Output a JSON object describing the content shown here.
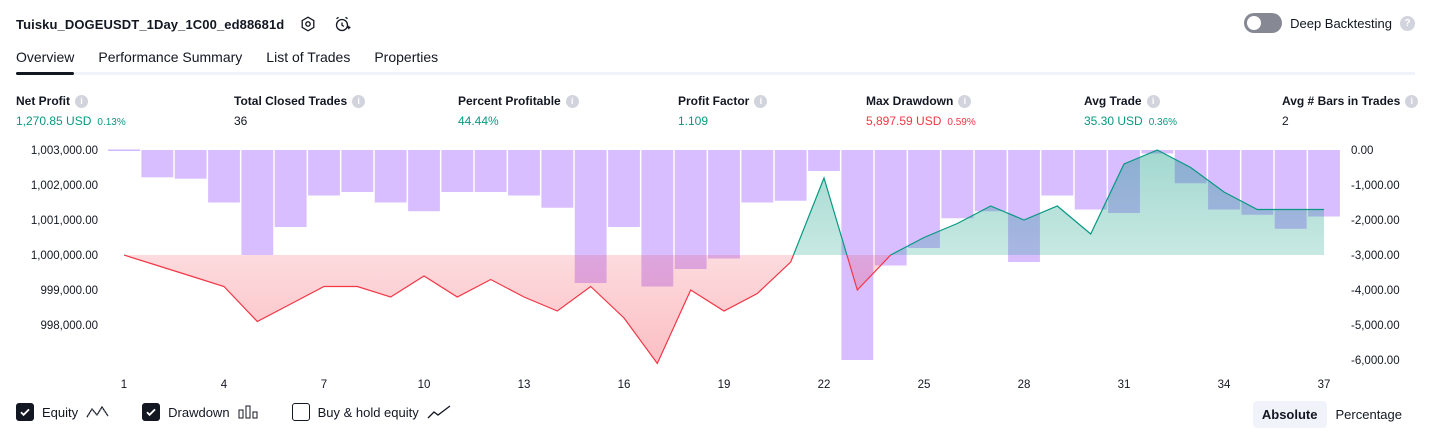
{
  "header": {
    "strategy_name": "Tuisku_DOGEUSDT_1Day_1C00_ed88681d",
    "deep_backtesting_label": "Deep Backtesting"
  },
  "tabs": [
    "Overview",
    "Performance Summary",
    "List of Trades",
    "Properties"
  ],
  "metrics": [
    {
      "label": "Net Profit",
      "value": "1,270.85 USD",
      "sub": "0.13%",
      "color": "green"
    },
    {
      "label": "Total Closed Trades",
      "value": "36",
      "sub": "",
      "color": "dark"
    },
    {
      "label": "Percent Profitable",
      "value": "44.44%",
      "sub": "",
      "color": "green"
    },
    {
      "label": "Profit Factor",
      "value": "1.109",
      "sub": "",
      "color": "green"
    },
    {
      "label": "Max Drawdown",
      "value": "5,897.59 USD",
      "sub": "0.59%",
      "color": "red"
    },
    {
      "label": "Avg Trade",
      "value": "35.30 USD",
      "sub": "0.36%",
      "color": "green"
    },
    {
      "label": "Avg # Bars in Trades",
      "value": "2",
      "sub": "",
      "color": "dark"
    }
  ],
  "chart_data": {
    "type": "line",
    "x": [
      1,
      2,
      3,
      4,
      5,
      6,
      7,
      8,
      9,
      10,
      11,
      12,
      13,
      14,
      15,
      16,
      17,
      18,
      19,
      20,
      21,
      22,
      23,
      24,
      25,
      26,
      27,
      28,
      29,
      30,
      31,
      32,
      33,
      34,
      35,
      36,
      37
    ],
    "x_ticks": [
      "1",
      "4",
      "7",
      "10",
      "13",
      "16",
      "19",
      "22",
      "25",
      "28",
      "31",
      "34",
      "37"
    ],
    "left_ticks": [
      "1,003,000.00",
      "1,002,000.00",
      "1,001,000.00",
      "1,000,000.00",
      "999,000.00",
      "998,000.00"
    ],
    "right_ticks": [
      "0.00",
      "-1,000.00",
      "-2,000.00",
      "-3,000.00",
      "-4,000.00",
      "-5,000.00",
      "-6,000.00"
    ],
    "left_ylim": [
      997000,
      1003000
    ],
    "right_ylim": [
      -6000,
      0
    ],
    "baseline": 1000000,
    "series": [
      {
        "name": "Equity",
        "axis": "left",
        "values": [
          1000000,
          999700,
          999400,
          999100,
          998100,
          998600,
          999100,
          999100,
          998800,
          999400,
          998800,
          999300,
          998800,
          998400,
          999100,
          998200,
          996900,
          999000,
          998400,
          998900,
          999800,
          1002200,
          999000,
          1000000,
          1000500,
          1000900,
          1001400,
          1001000,
          1001400,
          1000600,
          1002600,
          1003000,
          1002500,
          1001800,
          1001300,
          1001300,
          1001300
        ]
      },
      {
        "name": "Drawdown",
        "axis": "right",
        "values": [
          0,
          -780,
          -820,
          -1500,
          -3000,
          -2200,
          -1300,
          -1200,
          -1500,
          -1750,
          -1200,
          -1200,
          -1300,
          -1650,
          -3800,
          -2200,
          -3900,
          -3400,
          -3100,
          -1500,
          -1450,
          -600,
          -6000,
          -3300,
          -2800,
          -1950,
          -1750,
          -3200,
          -1300,
          -1700,
          -1800,
          -100,
          -950,
          -1700,
          -1850,
          -2250,
          -1900
        ]
      }
    ]
  },
  "legend": [
    {
      "label": "Equity",
      "checked": true
    },
    {
      "label": "Drawdown",
      "checked": true
    },
    {
      "label": "Buy & hold equity",
      "checked": false
    }
  ],
  "modes": [
    "Absolute",
    "Percentage"
  ],
  "colors": {
    "equity_up": "#089981",
    "equity_down": "#f23645",
    "drawdown": "#d1b3ff"
  }
}
